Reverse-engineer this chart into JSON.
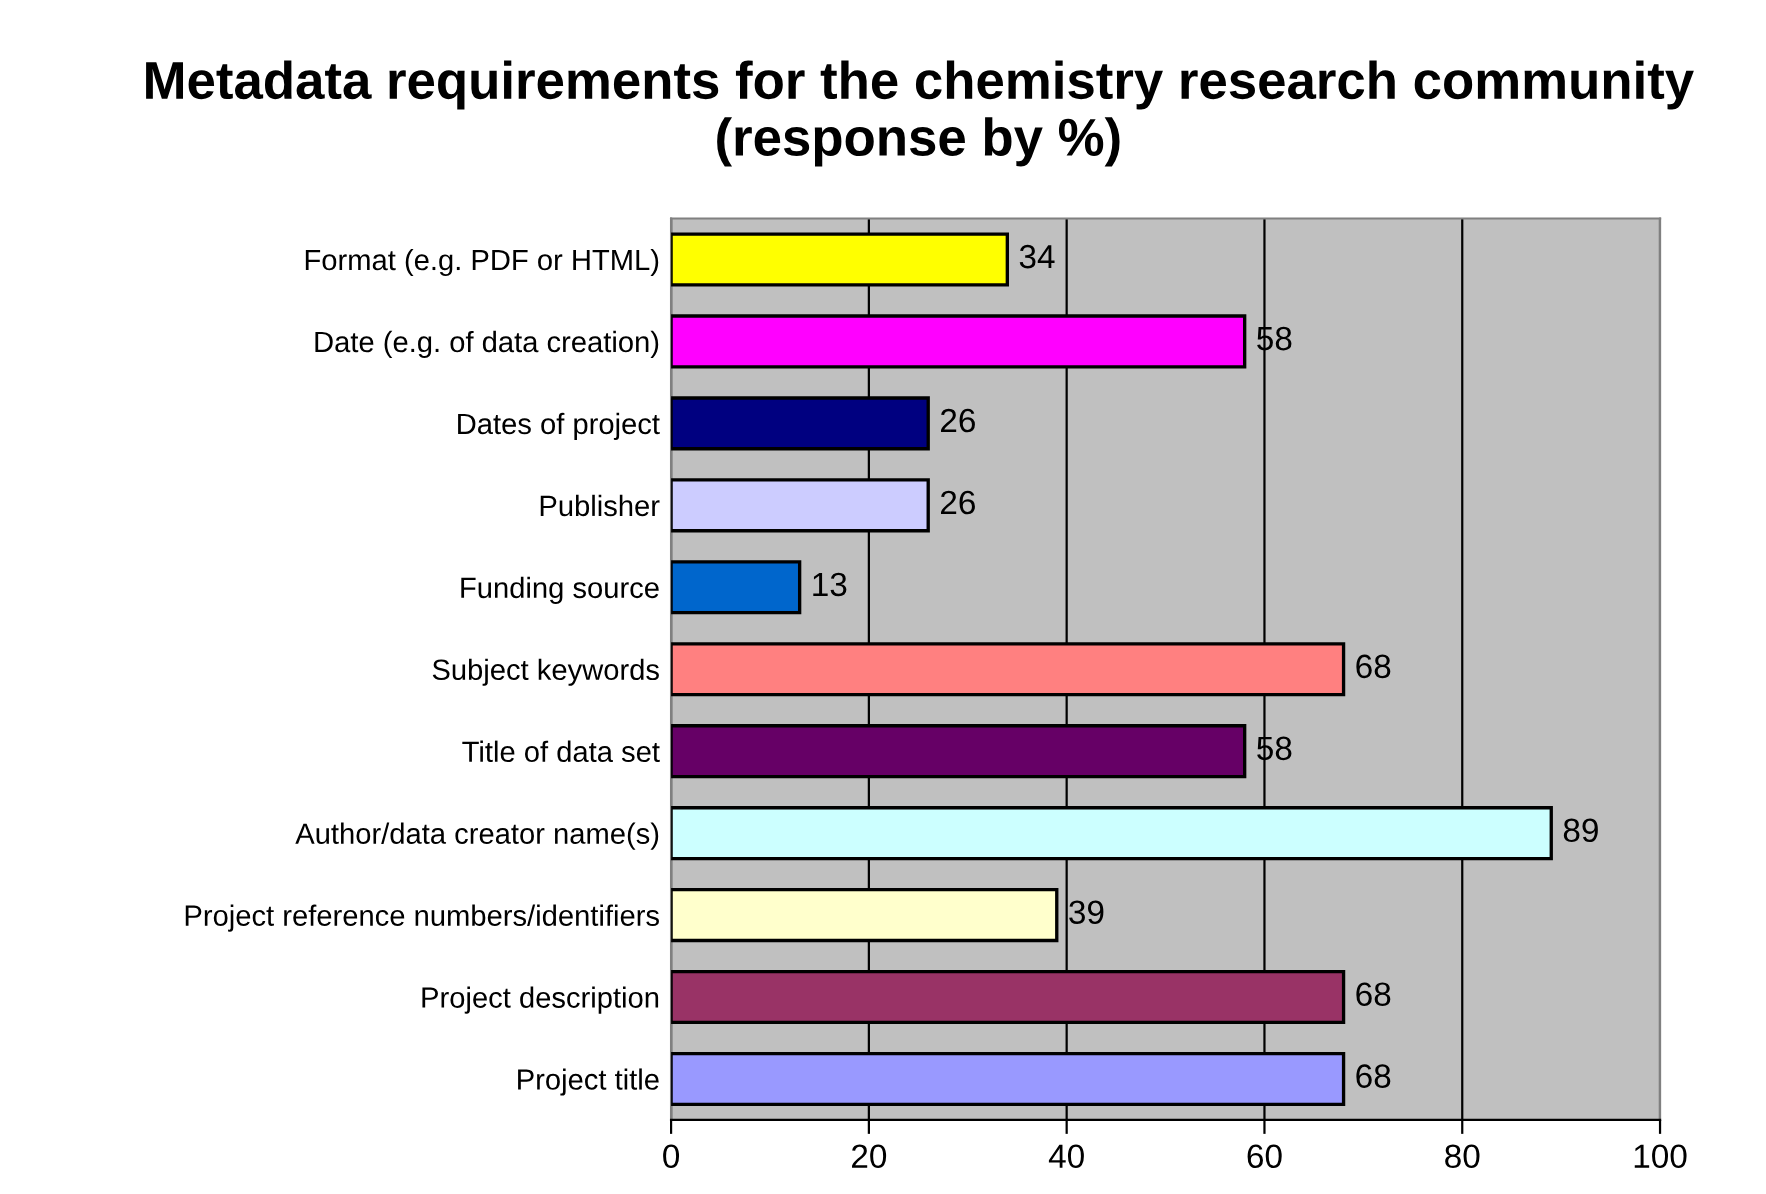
{
  "chart_data": {
    "type": "bar",
    "orientation": "horizontal",
    "title": "Metadata requirements for the chemistry research community (response by %)",
    "categories": [
      "Format (e.g. PDF or HTML)",
      "Date (e.g. of data creation)",
      "Dates of project",
      "Publisher",
      "Funding source",
      "Subject keywords",
      "Title of data set",
      "Author/data creator name(s)",
      "Project reference numbers/identifiers",
      "Project description",
      "Project title"
    ],
    "values": [
      34,
      58,
      26,
      26,
      13,
      68,
      58,
      89,
      39,
      68,
      68
    ],
    "colors": [
      "#ffff00",
      "#ff00ff",
      "#000080",
      "#ccccff",
      "#0066cc",
      "#ff8080",
      "#660066",
      "#ccffff",
      "#ffffcc",
      "#993366",
      "#9999ff"
    ],
    "xlim": [
      0,
      100
    ],
    "xticks": [
      0,
      20,
      40,
      60,
      80,
      100
    ],
    "grid": "x",
    "data_labels": true
  }
}
